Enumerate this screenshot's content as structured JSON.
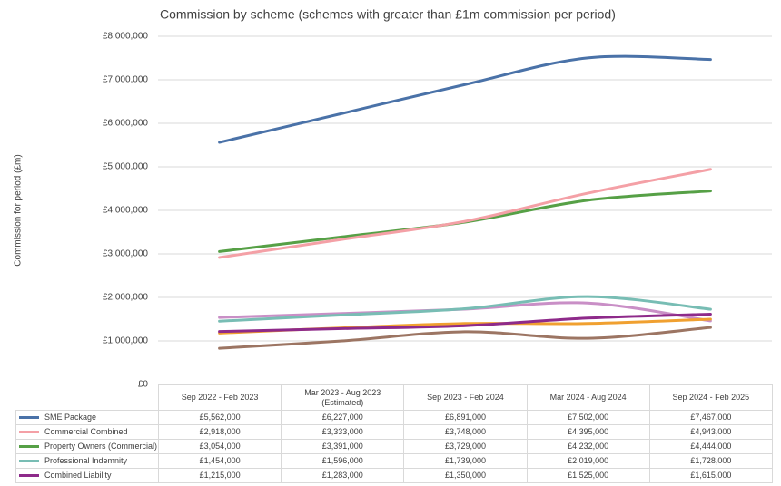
{
  "chart_data": {
    "type": "line",
    "title": "Commission by scheme (schemes with greater than £1m commission per period)",
    "y_label": "Commission for period (£m)",
    "categories": [
      "Sep 2022 - Feb 2023",
      "Mar 2023 - Aug 2023 (Estimated)",
      "Sep 2023 - Feb 2024",
      "Mar 2024 - Aug 2024",
      "Sep 2024 - Feb 2025"
    ],
    "ylim": [
      0,
      8000000
    ],
    "yticks": [
      {
        "value": 0,
        "label": "£0"
      },
      {
        "value": 1000000,
        "label": "£1,000,000"
      },
      {
        "value": 2000000,
        "label": "£2,000,000"
      },
      {
        "value": 3000000,
        "label": "£3,000,000"
      },
      {
        "value": 4000000,
        "label": "£4,000,000"
      },
      {
        "value": 5000000,
        "label": "£5,000,000"
      },
      {
        "value": 6000000,
        "label": "£6,000,000"
      },
      {
        "value": 7000000,
        "label": "£7,000,000"
      },
      {
        "value": 8000000,
        "label": "£8,000,000"
      }
    ],
    "grid": true,
    "smooth": true,
    "series": [
      {
        "name": "SME Package",
        "color": "#4a72a8",
        "values": [
          5562000,
          6227000,
          6891000,
          7502000,
          7467000
        ],
        "value_labels": [
          "£5,562,000",
          "£6,227,000",
          "£6,891,000",
          "£7,502,000",
          "£7,467,000"
        ]
      },
      {
        "name": "Commercial Combined",
        "color": "#f4a0a6",
        "values": [
          2918000,
          3333000,
          3748000,
          4395000,
          4943000
        ],
        "value_labels": [
          "£2,918,000",
          "£3,333,000",
          "£3,748,000",
          "£4,395,000",
          "£4,943,000"
        ]
      },
      {
        "name": "Property Owners (Commercial)",
        "color": "#56a046",
        "values": [
          3054000,
          3391000,
          3729000,
          4232000,
          4444000
        ],
        "value_labels": [
          "£3,054,000",
          "£3,391,000",
          "£3,729,000",
          "£4,232,000",
          "£4,444,000"
        ]
      },
      {
        "name": "Professional Indemnity",
        "color": "#78bdb4",
        "values": [
          1454000,
          1596000,
          1739000,
          2019000,
          1728000
        ],
        "value_labels": [
          "£1,454,000",
          "£1,596,000",
          "£1,739,000",
          "£2,019,000",
          "£1,728,000"
        ]
      },
      {
        "name": "Combined Liability",
        "color": "#8e2a8a",
        "values": [
          1215000,
          1283000,
          1350000,
          1525000,
          1615000
        ],
        "value_labels": [
          "£1,215,000",
          "£1,283,000",
          "£1,350,000",
          "£1,525,000",
          "£1,615,000"
        ]
      },
      {
        "color": "#f0a030",
        "values": [
          1180000,
          1300000,
          1400000,
          1400000,
          1500000
        ]
      },
      {
        "color": "#9c7563",
        "values": [
          830000,
          1000000,
          1210000,
          1060000,
          1310000
        ]
      },
      {
        "color": "#c98fc6",
        "values": [
          1540000,
          1630000,
          1730000,
          1870000,
          1460000
        ]
      }
    ]
  }
}
